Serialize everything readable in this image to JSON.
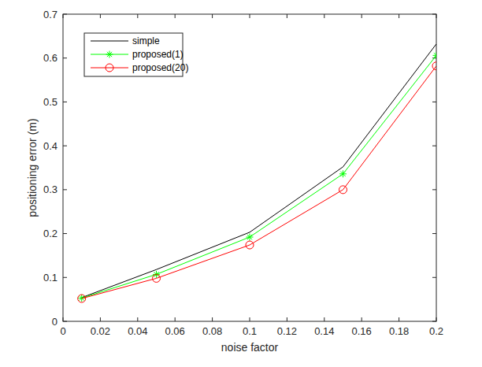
{
  "chart_data": {
    "type": "line",
    "x_label": "noise factor",
    "y_label": "positioning error (m)",
    "x": [
      0.01,
      0.05,
      0.1,
      0.15,
      0.2
    ],
    "series": [
      {
        "name": "simple",
        "color": "#000000",
        "marker": "none",
        "line_style": "solid",
        "values": [
          0.054,
          0.118,
          0.203,
          0.352,
          0.632
        ]
      },
      {
        "name": "proposed(1)",
        "color": "#00ff00",
        "marker": "asterisk",
        "line_style": "solid",
        "values": [
          0.053,
          0.107,
          0.192,
          0.336,
          0.606
        ]
      },
      {
        "name": "proposed(20)",
        "color": "#ff0000",
        "marker": "circle",
        "line_style": "solid",
        "values": [
          0.052,
          0.098,
          0.174,
          0.3,
          0.582
        ]
      }
    ],
    "xlim": [
      0,
      0.2
    ],
    "xticks": [
      0,
      0.02,
      0.04,
      0.06,
      0.08,
      0.1,
      0.12,
      0.14,
      0.16,
      0.18,
      0.2
    ],
    "ylim": [
      0,
      0.7
    ],
    "yticks": [
      0,
      0.1,
      0.2,
      0.3,
      0.4,
      0.5,
      0.6,
      0.7
    ],
    "grid": false,
    "legend": "northwest"
  }
}
